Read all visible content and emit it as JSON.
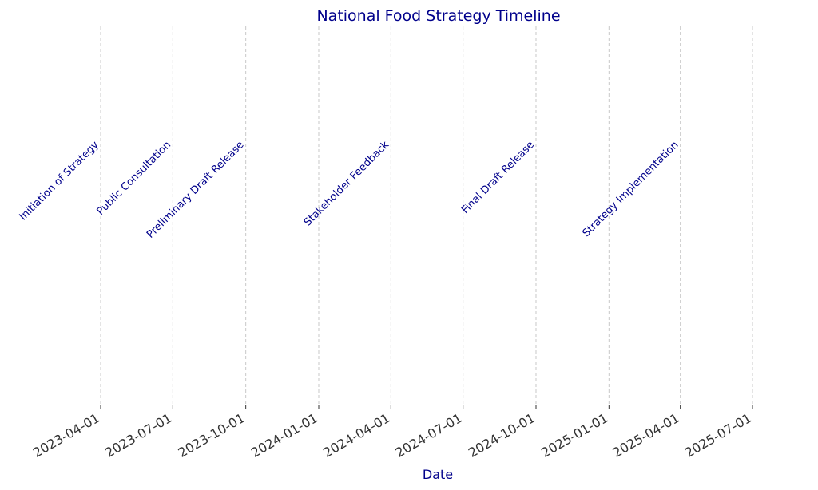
{
  "chart_data": {
    "type": "timeline",
    "title": "National Food Strategy Timeline",
    "xlabel": "Date",
    "ylabel": "",
    "x_range": [
      "2023-03-01",
      "2025-07-31"
    ],
    "grid": true,
    "ticks": [
      "2023-04-01",
      "2023-07-01",
      "2023-10-01",
      "2024-01-01",
      "2024-04-01",
      "2024-07-01",
      "2024-10-01",
      "2025-01-01",
      "2025-04-01",
      "2025-07-01"
    ],
    "events": [
      {
        "date": "2023-04-01",
        "label": "Initiation of Strategy"
      },
      {
        "date": "2023-07-01",
        "label": "Public Consultation"
      },
      {
        "date": "2023-10-01",
        "label": "Preliminary Draft Release"
      },
      {
        "date": "2024-04-01",
        "label": "Stakeholder Feedback"
      },
      {
        "date": "2024-10-01",
        "label": "Final Draft Release"
      },
      {
        "date": "2025-04-01",
        "label": "Strategy Implementation"
      }
    ],
    "colors": {
      "title": "#00008b",
      "event_label": "#00008b",
      "axis_label": "#00008b",
      "tick_label": "#333333",
      "gridline": "#c8c8c8",
      "tick_mark": "#333333"
    }
  }
}
